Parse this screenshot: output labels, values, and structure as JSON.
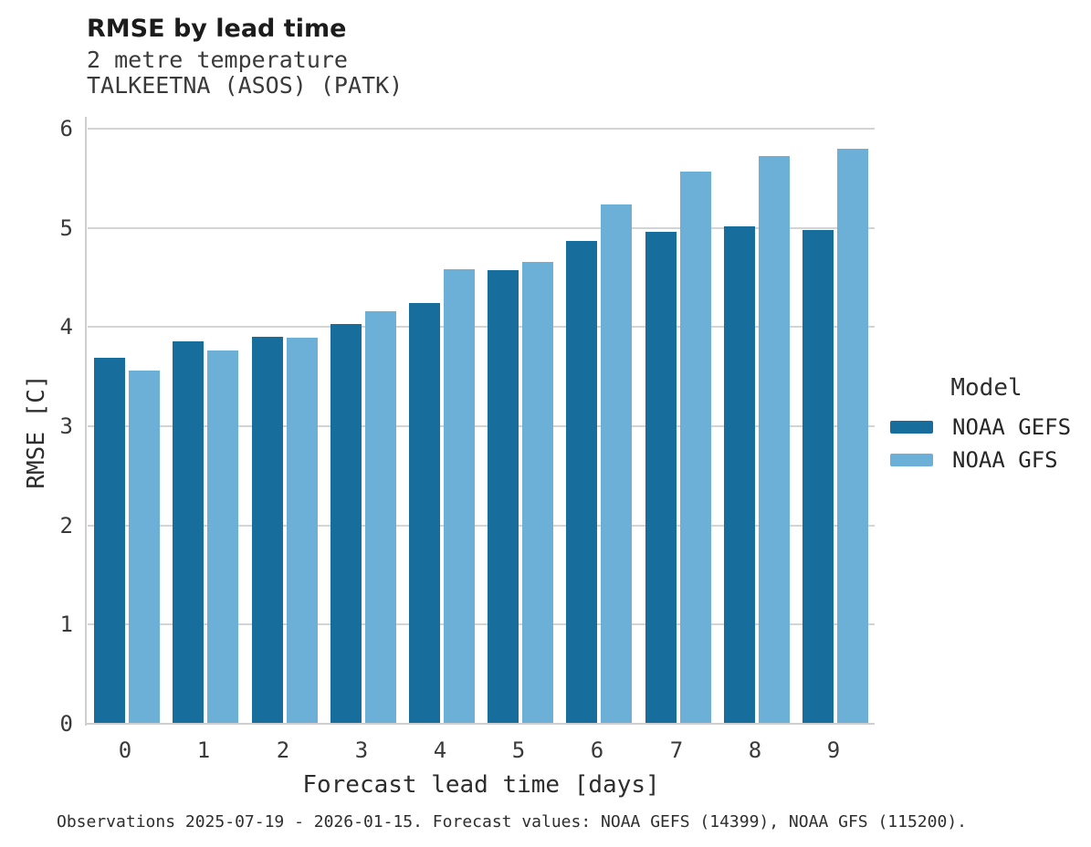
{
  "title": "RMSE by lead time",
  "subtitle_line1": "2 metre temperature",
  "subtitle_line2": "TALKEETNA (ASOS) (PATK)",
  "footer": "Observations 2025-07-19 - 2026-01-15. Forecast values: NOAA GEFS (14399), NOAA GFS (115200).",
  "legend": {
    "title": "Model",
    "entries": [
      {
        "label": "NOAA GEFS",
        "color": "#176e9d"
      },
      {
        "label": "NOAA GFS",
        "color": "#6cb0d8"
      }
    ]
  },
  "chart_data": {
    "type": "bar",
    "title": "RMSE by lead time",
    "subtitle": [
      "2 metre temperature",
      "TALKEETNA (ASOS) (PATK)"
    ],
    "categories": [
      "0",
      "1",
      "2",
      "3",
      "4",
      "5",
      "6",
      "7",
      "8",
      "9"
    ],
    "series": [
      {
        "name": "NOAA GEFS",
        "color": "#176e9d",
        "values": [
          3.69,
          3.86,
          3.9,
          4.03,
          4.24,
          4.57,
          4.87,
          4.96,
          5.02,
          4.98
        ]
      },
      {
        "name": "NOAA GFS",
        "color": "#6cb0d8",
        "values": [
          3.56,
          3.76,
          3.89,
          4.16,
          4.58,
          4.66,
          5.24,
          5.57,
          5.72,
          5.8
        ]
      }
    ],
    "xlabel": "Forecast lead time [days]",
    "ylabel": "RMSE [C]",
    "ylim": [
      0,
      6.12
    ],
    "yticks": [
      0,
      1,
      2,
      3,
      4,
      5,
      6
    ],
    "grid": "horizontal",
    "legend_position": "right",
    "legend_title": "Model"
  }
}
